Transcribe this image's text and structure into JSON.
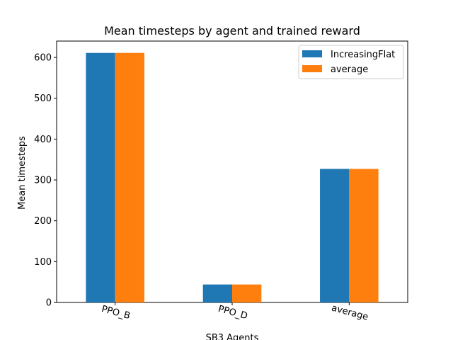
{
  "chart_data": {
    "type": "bar",
    "title": "Mean timesteps by agent and trained reward",
    "xlabel": "SB3 Agents",
    "ylabel": "Mean timesteps",
    "categories": [
      "PPO_B",
      "PPO_D",
      "average"
    ],
    "series": [
      {
        "name": "IncreasingFlat",
        "color": "#1f77b4",
        "values": [
          611,
          44,
          327
        ]
      },
      {
        "name": "average",
        "color": "#ff7f0e",
        "values": [
          611,
          44,
          327
        ]
      }
    ],
    "ylim": [
      0,
      640
    ],
    "yticks": [
      0,
      100,
      200,
      300,
      400,
      500,
      600
    ],
    "legend_position": "top-right",
    "grid": false
  }
}
